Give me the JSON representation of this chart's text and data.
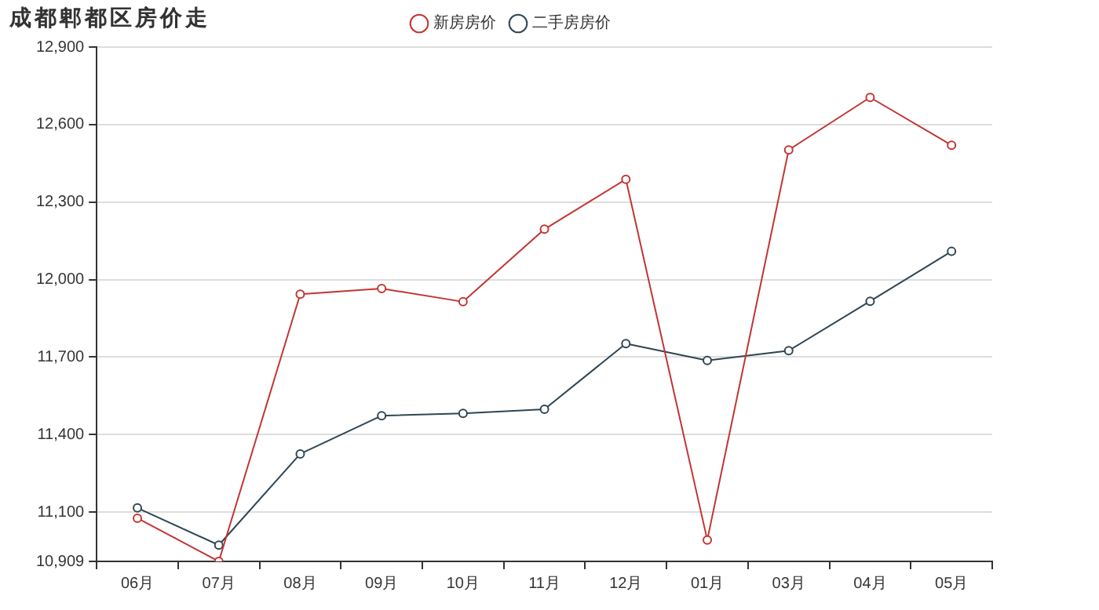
{
  "chart_data": {
    "type": "line",
    "title": "成都郫都区房价走",
    "categories": [
      "06月",
      "07月",
      "08月",
      "09月",
      "10月",
      "11月",
      "12月",
      "01月",
      "03月",
      "04月",
      "05月"
    ],
    "series": [
      {
        "name": "新房房价",
        "color": "#c23531",
        "values": [
          11076,
          10909,
          11943,
          11965,
          11914,
          12195,
          12388,
          10992,
          12502,
          12705,
          12520
        ]
      },
      {
        "name": "二手房房价",
        "color": "#2f4554",
        "values": [
          11116,
          10972,
          11325,
          11473,
          11482,
          11498,
          11752,
          11687,
          11725,
          11916,
          12109
        ]
      }
    ],
    "ylim": [
      10909,
      12900
    ],
    "yticks": [
      {
        "value": 10909,
        "label": "10,909"
      },
      {
        "value": 11100,
        "label": "11,100"
      },
      {
        "value": 11400,
        "label": "11,400"
      },
      {
        "value": 11700,
        "label": "11,700"
      },
      {
        "value": 12000,
        "label": "12,000"
      },
      {
        "value": 12300,
        "label": "12,300"
      },
      {
        "value": 12600,
        "label": "12,600"
      },
      {
        "value": 12900,
        "label": "12,900"
      }
    ],
    "grid": "y",
    "legend": "top",
    "marker": "circle",
    "line_style": "solid"
  }
}
